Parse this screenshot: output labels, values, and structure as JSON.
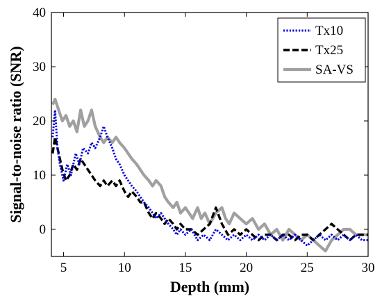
{
  "chart_data": {
    "type": "line",
    "title": "",
    "xlabel": "Depth (mm)",
    "ylabel": "Signal-to-noise ratio (SNR)",
    "xlim": [
      4,
      30
    ],
    "ylim": [
      -5,
      40
    ],
    "xticks": [
      5,
      10,
      15,
      20,
      25,
      30
    ],
    "yticks": [
      0,
      10,
      20,
      30,
      40
    ],
    "grid": false,
    "legend": "top-right",
    "series": [
      {
        "name": "Tx10",
        "color": "#0000dd",
        "style": "dotted",
        "points": [
          [
            4.1,
            17
          ],
          [
            4.3,
            22
          ],
          [
            4.5,
            15
          ],
          [
            4.7,
            12
          ],
          [
            5.0,
            9
          ],
          [
            5.3,
            12
          ],
          [
            5.6,
            10
          ],
          [
            6.0,
            14
          ],
          [
            6.3,
            12
          ],
          [
            6.6,
            15
          ],
          [
            7.0,
            14
          ],
          [
            7.3,
            16
          ],
          [
            7.6,
            15
          ],
          [
            8.0,
            17
          ],
          [
            8.3,
            19
          ],
          [
            8.6,
            17
          ],
          [
            9.0,
            15
          ],
          [
            9.3,
            13
          ],
          [
            9.6,
            12
          ],
          [
            10.0,
            10
          ],
          [
            10.3,
            9
          ],
          [
            10.6,
            8
          ],
          [
            11.0,
            7
          ],
          [
            11.3,
            6
          ],
          [
            11.6,
            5
          ],
          [
            12.0,
            4
          ],
          [
            12.3,
            3
          ],
          [
            12.6,
            2
          ],
          [
            13.0,
            3
          ],
          [
            13.3,
            2
          ],
          [
            13.6,
            1
          ],
          [
            14.0,
            0
          ],
          [
            14.3,
            -1
          ],
          [
            14.6,
            0
          ],
          [
            15.0,
            -1
          ],
          [
            15.5,
            0
          ],
          [
            16.0,
            -2
          ],
          [
            16.5,
            -1
          ],
          [
            17.0,
            -2
          ],
          [
            17.5,
            0
          ],
          [
            18.0,
            -1
          ],
          [
            18.5,
            -2
          ],
          [
            19.0,
            -1
          ],
          [
            19.5,
            -2
          ],
          [
            20.0,
            -1
          ],
          [
            20.5,
            -2
          ],
          [
            21.0,
            -1
          ],
          [
            21.5,
            -2
          ],
          [
            22.0,
            -1
          ],
          [
            22.5,
            -2
          ],
          [
            23.0,
            -1
          ],
          [
            23.5,
            -2
          ],
          [
            24.0,
            -1
          ],
          [
            24.5,
            -2
          ],
          [
            25.0,
            -3
          ],
          [
            25.5,
            -2
          ],
          [
            26.0,
            -1
          ],
          [
            26.5,
            -2
          ],
          [
            27.0,
            -1
          ],
          [
            27.5,
            -2
          ],
          [
            28.0,
            -1
          ],
          [
            28.5,
            -2
          ],
          [
            29.0,
            -1
          ],
          [
            29.5,
            -2
          ],
          [
            30.0,
            -2
          ]
        ]
      },
      {
        "name": "Tx25",
        "color": "#000000",
        "style": "dashed",
        "points": [
          [
            4.1,
            14
          ],
          [
            4.3,
            17
          ],
          [
            4.6,
            14
          ],
          [
            4.9,
            11
          ],
          [
            5.2,
            9
          ],
          [
            5.5,
            10
          ],
          [
            5.8,
            12
          ],
          [
            6.1,
            11
          ],
          [
            6.4,
            13
          ],
          [
            6.7,
            12
          ],
          [
            7.0,
            11
          ],
          [
            7.3,
            10
          ],
          [
            7.6,
            9
          ],
          [
            8.0,
            8
          ],
          [
            8.3,
            9
          ],
          [
            8.6,
            8
          ],
          [
            9.0,
            9
          ],
          [
            9.3,
            8
          ],
          [
            9.6,
            9
          ],
          [
            10.0,
            7
          ],
          [
            10.3,
            6
          ],
          [
            10.6,
            7
          ],
          [
            11.0,
            6
          ],
          [
            11.3,
            5
          ],
          [
            11.6,
            5
          ],
          [
            12.0,
            3
          ],
          [
            12.3,
            2
          ],
          [
            12.6,
            3
          ],
          [
            13.0,
            2
          ],
          [
            13.3,
            1
          ],
          [
            13.6,
            2
          ],
          [
            14.0,
            1
          ],
          [
            14.3,
            0
          ],
          [
            14.6,
            1
          ],
          [
            15.0,
            0
          ],
          [
            15.5,
            0
          ],
          [
            16.0,
            -1
          ],
          [
            16.5,
            0
          ],
          [
            17.0,
            1
          ],
          [
            17.5,
            4
          ],
          [
            18.0,
            1
          ],
          [
            18.5,
            -1
          ],
          [
            19.0,
            0
          ],
          [
            19.5,
            -1
          ],
          [
            20.0,
            0
          ],
          [
            20.5,
            -1
          ],
          [
            21.0,
            -2
          ],
          [
            21.5,
            -1
          ],
          [
            22.0,
            -1
          ],
          [
            22.5,
            -2
          ],
          [
            23.0,
            -1
          ],
          [
            23.5,
            -1
          ],
          [
            24.0,
            -2
          ],
          [
            24.5,
            -1
          ],
          [
            25.0,
            -1
          ],
          [
            25.5,
            -2
          ],
          [
            26.0,
            -1
          ],
          [
            26.5,
            0
          ],
          [
            27.0,
            1
          ],
          [
            27.5,
            0
          ],
          [
            28.0,
            -1
          ],
          [
            28.5,
            -2
          ],
          [
            29.0,
            -1
          ],
          [
            29.5,
            -1
          ],
          [
            30.0,
            -1
          ]
        ]
      },
      {
        "name": "SA-VS",
        "color": "#a0a0a0",
        "style": "solid",
        "points": [
          [
            4.1,
            23
          ],
          [
            4.3,
            24
          ],
          [
            4.6,
            22
          ],
          [
            4.9,
            20
          ],
          [
            5.2,
            21
          ],
          [
            5.5,
            19
          ],
          [
            5.8,
            20
          ],
          [
            6.1,
            18
          ],
          [
            6.4,
            22
          ],
          [
            6.7,
            19
          ],
          [
            7.0,
            20
          ],
          [
            7.3,
            22
          ],
          [
            7.6,
            19
          ],
          [
            8.0,
            17
          ],
          [
            8.3,
            16
          ],
          [
            8.6,
            17
          ],
          [
            9.0,
            16
          ],
          [
            9.3,
            17
          ],
          [
            9.6,
            16
          ],
          [
            10.0,
            15
          ],
          [
            10.3,
            14
          ],
          [
            10.6,
            13
          ],
          [
            11.0,
            12
          ],
          [
            11.3,
            11
          ],
          [
            11.6,
            10
          ],
          [
            12.0,
            9
          ],
          [
            12.3,
            8
          ],
          [
            12.6,
            9
          ],
          [
            13.0,
            8
          ],
          [
            13.3,
            6
          ],
          [
            13.6,
            5
          ],
          [
            14.0,
            4
          ],
          [
            14.3,
            5
          ],
          [
            14.6,
            3
          ],
          [
            15.0,
            4
          ],
          [
            15.3,
            3
          ],
          [
            15.6,
            2
          ],
          [
            16.0,
            4
          ],
          [
            16.3,
            2
          ],
          [
            16.6,
            3
          ],
          [
            17.0,
            1
          ],
          [
            17.5,
            3
          ],
          [
            18.0,
            4
          ],
          [
            18.3,
            2
          ],
          [
            18.6,
            1
          ],
          [
            19.0,
            3
          ],
          [
            19.5,
            2
          ],
          [
            20.0,
            1
          ],
          [
            20.5,
            2
          ],
          [
            21.0,
            0
          ],
          [
            21.5,
            1
          ],
          [
            22.0,
            -1
          ],
          [
            22.5,
            0
          ],
          [
            23.0,
            -2
          ],
          [
            23.5,
            0
          ],
          [
            24.0,
            -1
          ],
          [
            24.5,
            -2
          ],
          [
            25.0,
            -1
          ],
          [
            25.5,
            -2
          ],
          [
            26.0,
            -3
          ],
          [
            26.5,
            -4
          ],
          [
            27.0,
            -2
          ],
          [
            27.5,
            -1
          ],
          [
            28.0,
            0
          ],
          [
            28.5,
            0
          ],
          [
            29.0,
            -1
          ],
          [
            29.5,
            -1
          ],
          [
            30.0,
            -1
          ]
        ]
      }
    ]
  }
}
